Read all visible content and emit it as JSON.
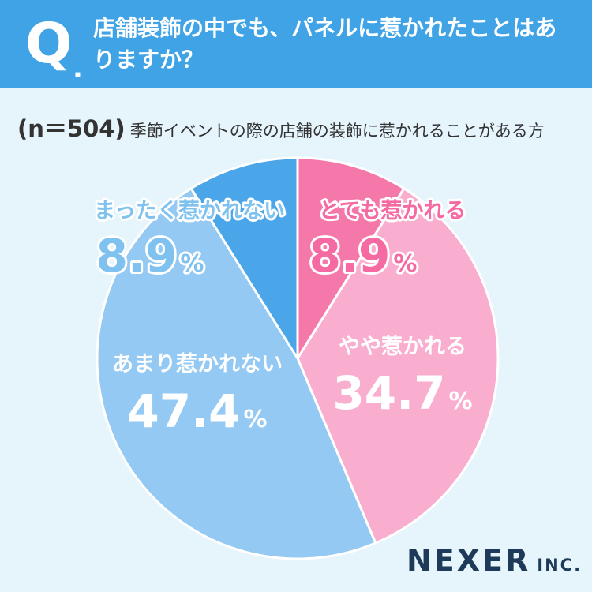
{
  "header": {
    "q_mark": "Q",
    "q_dot": ".",
    "question": "店舗装飾の中でも、パネルに惹かれたことはありますか？"
  },
  "subtitle": {
    "n": "(n＝504)",
    "description": "季節イベントの際の店舗の装飾に惹かれることがある方"
  },
  "chart_data": {
    "type": "pie",
    "title": "",
    "unit": "%",
    "start": "12 o'clock, clockwise",
    "slices": [
      {
        "label": "とても惹かれる",
        "value": 8.9,
        "display": "8.9",
        "color": "#f578ab",
        "label_color": "#f56aa3",
        "outline": true
      },
      {
        "label": "やや惹かれる",
        "value": 34.7,
        "display": "34.7",
        "color": "#f9aed0",
        "label_color": "#ffffff",
        "outline": false
      },
      {
        "label": "あまり惹かれない",
        "value": 47.4,
        "display": "47.4",
        "color": "#93c9f2",
        "label_color": "#ffffff",
        "outline": false
      },
      {
        "label": "まったく惹かれない",
        "value": 8.9,
        "display": "8.9",
        "color": "#4aa5e9",
        "label_color": "#7fc2ef",
        "outline": true
      }
    ]
  },
  "logo": {
    "name": "NEXER",
    "suffix": "INC."
  },
  "colors": {
    "header": "#3fa3e6",
    "background": "#e6f4fc",
    "logo": "#1d3a58"
  }
}
